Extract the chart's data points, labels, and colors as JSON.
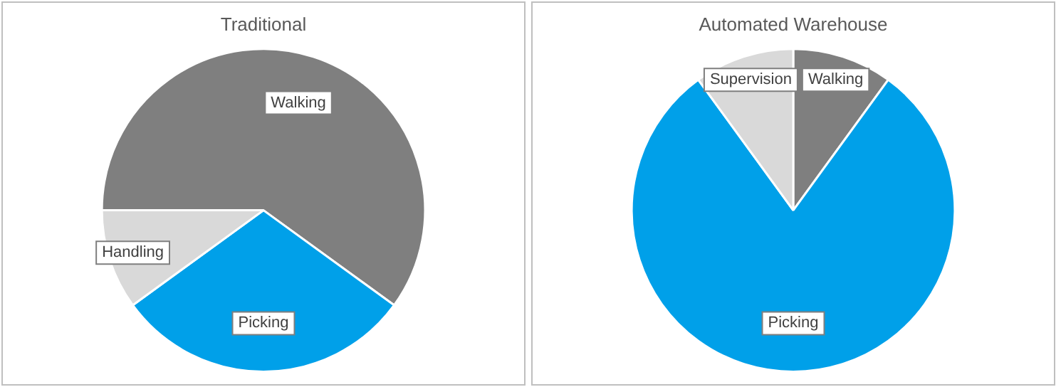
{
  "chart_data": [
    {
      "type": "pie",
      "title": "Traditional",
      "categories": [
        "Walking",
        "Picking",
        "Handling"
      ],
      "values": [
        60,
        30,
        10
      ],
      "colors": [
        "#7f7f7f",
        "#00a0e9",
        "#d9d9d9"
      ],
      "legend": false
    },
    {
      "type": "pie",
      "title": "Automated Warehouse",
      "categories": [
        "Walking",
        "Picking",
        "Supervision"
      ],
      "values": [
        10,
        80,
        10
      ],
      "colors": [
        "#7f7f7f",
        "#00a0e9",
        "#d9d9d9"
      ],
      "legend": false
    }
  ]
}
